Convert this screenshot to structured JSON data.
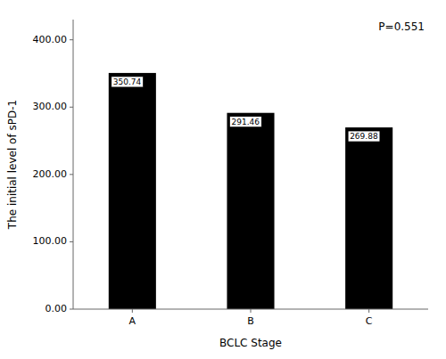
{
  "chart_data": {
    "type": "bar",
    "categories": [
      "A",
      "B",
      "C"
    ],
    "values": [
      350.74,
      291.46,
      269.88
    ],
    "color": "#000000",
    "x_label": "BCLC Stage",
    "y_label": "The initial level of sPD-1",
    "annotation": "P=0.551",
    "ylim": [
      0,
      430
    ],
    "yticks": [
      {
        "value": 0.0,
        "label": "0.00"
      },
      {
        "value": 100.0,
        "label": "100.00"
      },
      {
        "value": 200.0,
        "label": "200.00"
      },
      {
        "value": 300.0,
        "label": "300.00"
      },
      {
        "value": 400.0,
        "label": "400.00"
      }
    ],
    "data_labels": true,
    "grid": false
  }
}
